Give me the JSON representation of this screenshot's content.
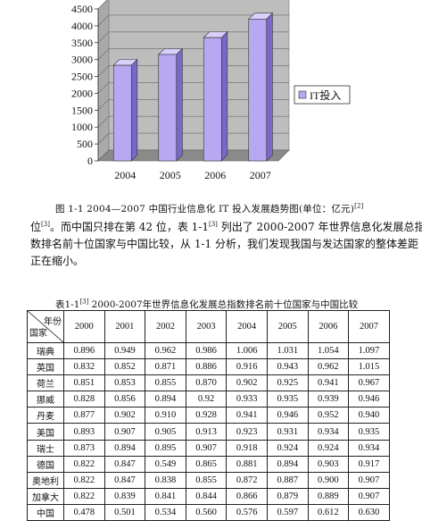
{
  "chart_data": {
    "type": "bar",
    "categories": [
      "2004",
      "2005",
      "2006",
      "2007"
    ],
    "series": [
      {
        "name": "IT投入",
        "values": [
          2830,
          3150,
          3650,
          4200
        ]
      }
    ],
    "ylim": [
      0,
      4500
    ],
    "yticks": [
      "0",
      "500",
      "1000",
      "1500",
      "2000",
      "2500",
      "3000",
      "3500",
      "4000",
      "4500"
    ],
    "legend_position": "right",
    "grid": true,
    "colors": {
      "bar_front": "#b8a8f2",
      "bar_side": "#7868c8",
      "bar_top": "#d8d0fa",
      "wall": "#bdbdbd",
      "floor": "#8a8a8a"
    }
  },
  "figure_caption": {
    "text": "图 1-1    2004—2007 中国行业信息化 IT 投入发展趋势图(单位：亿元)",
    "ref": "[2]"
  },
  "paragraph": {
    "line1_a": "位",
    "line1_ref1": "[3]",
    "line1_b": "。而中国只排在第 42 位，表 1-1",
    "line1_ref2": "[3]",
    "line1_c": " 列出了 2000-2007 年世界信息化发展总指",
    "line2": "数排名前十位国家与中国比较，从 1-1 分析，我们发现我国与发达国家的整体差距",
    "line3": "正在缩小。"
  },
  "table_caption": {
    "prefix": "表1-1",
    "ref": "[3]",
    "text": "  2000-2007年世界信息化发展总指数排名前十位国家与中国比较"
  },
  "table": {
    "corner_top": "年份",
    "corner_bottom": "国家",
    "headers": [
      "2000",
      "2001",
      "2002",
      "2003",
      "2004",
      "2005",
      "2006",
      "2007"
    ],
    "rows": [
      {
        "country": "瑞典",
        "values": [
          "0.896",
          "0.949",
          "0.962",
          "0.986",
          "1.006",
          "1.031",
          "1.054",
          "1.097"
        ]
      },
      {
        "country": "英国",
        "values": [
          "0.832",
          "0.852",
          "0.871",
          "0.886",
          "0.916",
          "0.943",
          "0.962",
          "1.015"
        ]
      },
      {
        "country": "荷兰",
        "values": [
          "0.851",
          "0.853",
          "0.855",
          "0.870",
          "0.902",
          "0.925",
          "0.941",
          "0.967"
        ]
      },
      {
        "country": "挪威",
        "values": [
          "0.828",
          "0.856",
          "0.894",
          "0.92",
          "0.933",
          "0.935",
          "0.939",
          "0.946"
        ]
      },
      {
        "country": "丹麦",
        "values": [
          "0.877",
          "0.902",
          "0.910",
          "0.928",
          "0.941",
          "0.946",
          "0.952",
          "0.940"
        ]
      },
      {
        "country": "美国",
        "values": [
          "0.893",
          "0.907",
          "0.905",
          "0.913",
          "0.923",
          "0.931",
          "0.934",
          "0.935"
        ]
      },
      {
        "country": "瑞士",
        "values": [
          "0.873",
          "0.894",
          "0.895",
          "0.907",
          "0.918",
          "0.924",
          "0.924",
          "0.934"
        ]
      },
      {
        "country": "德国",
        "values": [
          "0.822",
          "0.847",
          "0.549",
          "0.865",
          "0.881",
          "0.894",
          "0.903",
          "0.917"
        ]
      },
      {
        "country": "奥地利",
        "values": [
          "0.822",
          "0.847",
          "0.838",
          "0.855",
          "0.872",
          "0.887",
          "0.900",
          "0.907"
        ]
      },
      {
        "country": "加拿大",
        "values": [
          "0.822",
          "0.839",
          "0.841",
          "0.844",
          "0.866",
          "0.879",
          "0.889",
          "0.907"
        ]
      },
      {
        "country": "中国",
        "values": [
          "0.478",
          "0.501",
          "0.534",
          "0.560",
          "0.576",
          "0.597",
          "0.612",
          "0.630"
        ]
      }
    ]
  }
}
